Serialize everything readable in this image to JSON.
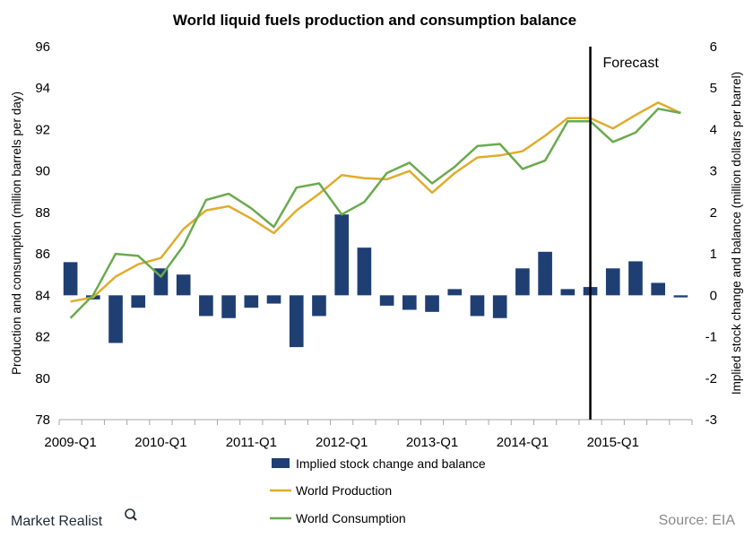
{
  "chart_data": {
    "type": "bar+line",
    "title": "World liquid fuels production and consumption balance",
    "ylabel_left": "Production and consumption (million barrels per day)",
    "ylabel_right": "Implied stock change and balance (million dollars per barrel)",
    "ylim_left": [
      78,
      96
    ],
    "ylim_right": [
      -3,
      6
    ],
    "yticks_left": [
      "78",
      "80",
      "82",
      "84",
      "86",
      "88",
      "90",
      "92",
      "94",
      "96"
    ],
    "yticks_right": [
      "-3",
      "-2",
      "-1",
      "0",
      "1",
      "2",
      "3",
      "4",
      "5",
      "6"
    ],
    "xtick_labels": [
      "2009-Q1",
      "2010-Q1",
      "2011-Q1",
      "2012-Q1",
      "2013-Q1",
      "2014-Q1",
      "2015-Q1"
    ],
    "categories": [
      "2009-Q1",
      "2009-Q2",
      "2009-Q3",
      "2009-Q4",
      "2010-Q1",
      "2010-Q2",
      "2010-Q3",
      "2010-Q4",
      "2011-Q1",
      "2011-Q2",
      "2011-Q3",
      "2011-Q4",
      "2012-Q1",
      "2012-Q2",
      "2012-Q3",
      "2012-Q4",
      "2013-Q1",
      "2013-Q2",
      "2013-Q3",
      "2013-Q4",
      "2014-Q1",
      "2014-Q2",
      "2014-Q3",
      "2014-Q4",
      "2015-Q1",
      "2015-Q2",
      "2015-Q3",
      "2015-Q4"
    ],
    "series": [
      {
        "name": "Implied stock change and balance",
        "type": "bar",
        "axis": "right",
        "color": "#1f3f73",
        "values": [
          0.8,
          -0.1,
          -1.15,
          -0.3,
          0.65,
          0.5,
          -0.5,
          -0.55,
          -0.3,
          -0.2,
          -1.25,
          -0.5,
          1.95,
          1.15,
          -0.25,
          -0.35,
          -0.4,
          0.15,
          -0.5,
          -0.55,
          0.65,
          1.05,
          0.15,
          0.2,
          0.65,
          0.82,
          0.3,
          -0.05
        ]
      },
      {
        "name": "World Production",
        "type": "line",
        "axis": "left",
        "color": "#e0ac2b",
        "values": [
          83.7,
          83.9,
          84.9,
          85.5,
          85.8,
          87.2,
          88.1,
          88.3,
          87.7,
          87.0,
          88.1,
          88.9,
          89.8,
          89.65,
          89.6,
          90.0,
          88.95,
          89.9,
          90.65,
          90.75,
          90.95,
          91.7,
          92.55,
          92.55,
          92.05,
          92.7,
          93.3,
          92.8
        ]
      },
      {
        "name": "World Consumption",
        "type": "line",
        "axis": "left",
        "color": "#6aaa4f",
        "values": [
          82.9,
          84.0,
          86.0,
          85.9,
          84.9,
          86.4,
          88.6,
          88.9,
          88.2,
          87.3,
          89.2,
          89.4,
          87.9,
          88.5,
          89.9,
          90.4,
          89.4,
          90.2,
          91.2,
          91.3,
          90.1,
          90.5,
          92.4,
          92.4,
          91.4,
          91.85,
          93.0,
          92.8
        ]
      }
    ],
    "forecast_start_index": 23.5,
    "annotation": "Forecast",
    "legend_position": "bottom",
    "grid": false
  },
  "branding": {
    "logo_text": "Market Realist",
    "source_text": "Source: EIA"
  }
}
